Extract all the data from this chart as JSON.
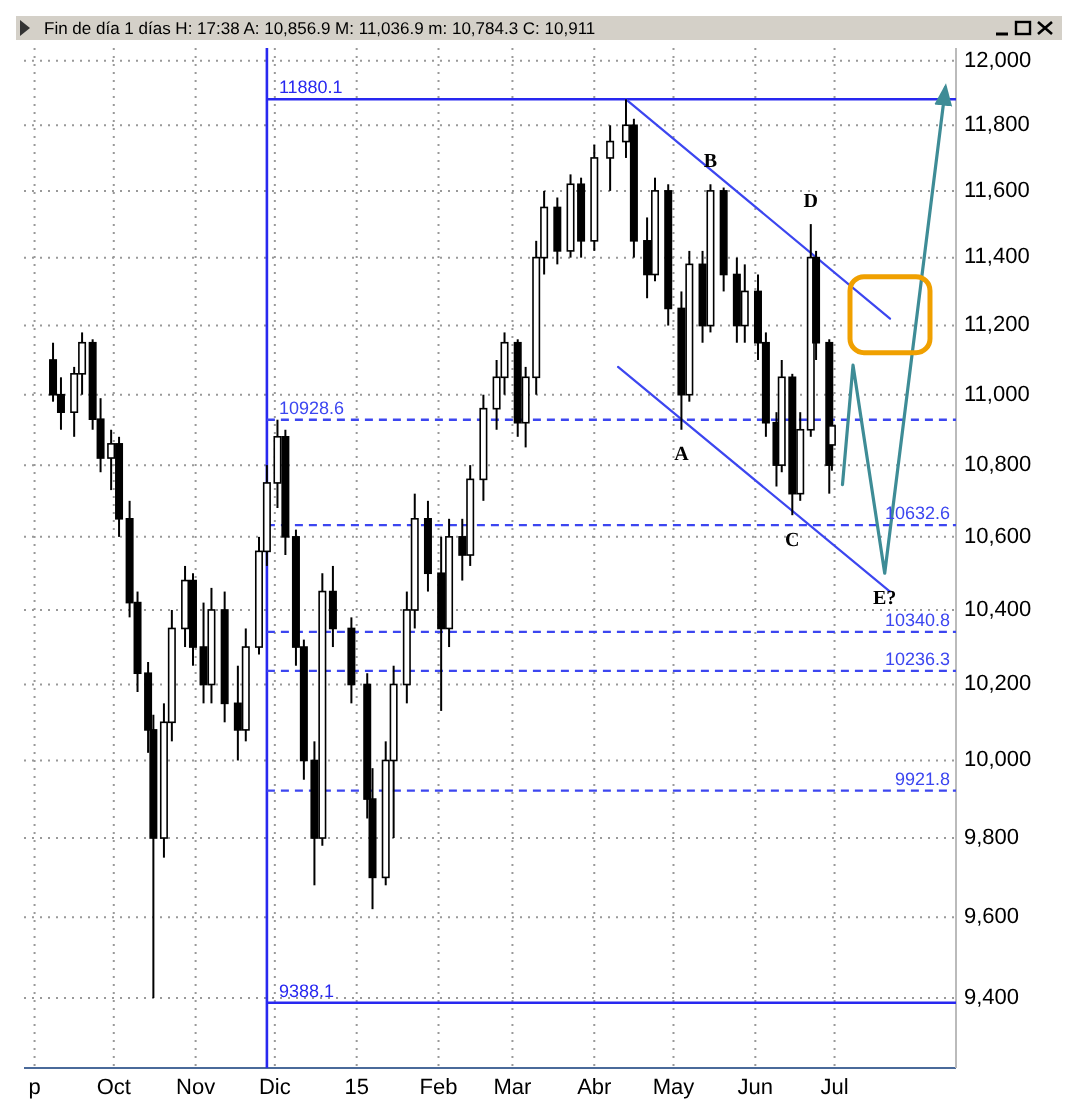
{
  "chart_data": {
    "type": "candlestick",
    "title": "Fin de día 1 días H: 17:38 A: 10,856.9 M: 11,036.9 m: 10,784.3 C: 10,911",
    "log": true,
    "grid": true,
    "xlim": [
      "2014-08-28",
      "2015-08-16"
    ],
    "xticks": [
      {
        "value": "2014-09-01",
        "label": "p"
      },
      {
        "value": "2014-10-01",
        "label": "Oct"
      },
      {
        "value": "2014-11-01",
        "label": "Nov"
      },
      {
        "value": "2014-12-01",
        "label": "Dic"
      },
      {
        "value": "2015-01-01",
        "label": "15"
      },
      {
        "value": "2015-02-01",
        "label": "Feb"
      },
      {
        "value": "2015-03-01",
        "label": "Mar"
      },
      {
        "value": "2015-04-01",
        "label": "Abr"
      },
      {
        "value": "2015-05-01",
        "label": "May"
      },
      {
        "value": "2015-06-01",
        "label": "Jun"
      },
      {
        "value": "2015-07-01",
        "label": "Jul"
      }
    ],
    "ylim": [
      9230,
      12040
    ],
    "yticks": [
      {
        "value": 9400,
        "label": "9,400"
      },
      {
        "value": 9600,
        "label": "9,600"
      },
      {
        "value": 9800,
        "label": "9,800"
      },
      {
        "value": 10000,
        "label": "10,000"
      },
      {
        "value": 10200,
        "label": "10,200"
      },
      {
        "value": 10400,
        "label": "10,400"
      },
      {
        "value": 10600,
        "label": "10,600"
      },
      {
        "value": 10800,
        "label": "10,800"
      },
      {
        "value": 11000,
        "label": "11,000"
      },
      {
        "value": 11200,
        "label": "11,200"
      },
      {
        "value": 11400,
        "label": "11,400"
      },
      {
        "value": 11600,
        "label": "11,600"
      },
      {
        "value": 11800,
        "label": "11,800"
      },
      {
        "value": 12000,
        "label": "12,000"
      }
    ],
    "x": [
      "2014-09-08",
      "2014-09-11",
      "2014-09-16",
      "2014-09-19",
      "2014-09-23",
      "2014-09-26",
      "2014-09-30",
      "2014-10-03",
      "2014-10-07",
      "2014-10-10",
      "2014-10-14",
      "2014-10-16",
      "2014-10-20",
      "2014-10-23",
      "2014-10-28",
      "2014-10-31",
      "2014-11-04",
      "2014-11-07",
      "2014-11-12",
      "2014-11-17",
      "2014-11-20",
      "2014-11-25",
      "2014-11-28",
      "2014-12-02",
      "2014-12-05",
      "2014-12-09",
      "2014-12-12",
      "2014-12-16",
      "2014-12-19",
      "2014-12-23",
      "2014-12-30",
      "2015-01-05",
      "2015-01-07",
      "2015-01-12",
      "2015-01-15",
      "2015-01-20",
      "2015-01-23",
      "2015-01-28",
      "2015-02-02",
      "2015-02-05",
      "2015-02-10",
      "2015-02-13",
      "2015-02-18",
      "2015-02-23",
      "2015-02-26",
      "2015-03-03",
      "2015-03-06",
      "2015-03-10",
      "2015-03-13",
      "2015-03-18",
      "2015-03-23",
      "2015-03-27",
      "2015-04-01",
      "2015-04-07",
      "2015-04-13",
      "2015-04-16",
      "2015-04-21",
      "2015-04-24",
      "2015-04-29",
      "2015-05-04",
      "2015-05-07",
      "2015-05-12",
      "2015-05-15",
      "2015-05-20",
      "2015-05-25",
      "2015-05-28",
      "2015-06-02",
      "2015-06-05",
      "2015-06-09",
      "2015-06-11",
      "2015-06-15",
      "2015-06-18",
      "2015-06-22",
      "2015-06-24",
      "2015-06-29",
      "2015-06-30"
    ],
    "ohlc": [
      [
        11100,
        11150,
        10980,
        11000
      ],
      [
        11000,
        11050,
        10900,
        10950
      ],
      [
        10950,
        11080,
        10880,
        11060
      ],
      [
        11060,
        11180,
        11000,
        11150
      ],
      [
        11150,
        11160,
        10900,
        10930
      ],
      [
        10930,
        10990,
        10780,
        10820
      ],
      [
        10820,
        10900,
        10730,
        10860
      ],
      [
        10860,
        10880,
        10600,
        10650
      ],
      [
        10650,
        10700,
        10380,
        10420
      ],
      [
        10420,
        10450,
        10180,
        10230
      ],
      [
        10230,
        10260,
        10020,
        10080
      ],
      [
        10080,
        10120,
        9400,
        9800
      ],
      [
        9800,
        10150,
        9750,
        10100
      ],
      [
        10100,
        10400,
        10050,
        10350
      ],
      [
        10350,
        10520,
        10300,
        10480
      ],
      [
        10480,
        10500,
        10250,
        10300
      ],
      [
        10300,
        10420,
        10150,
        10200
      ],
      [
        10200,
        10460,
        10150,
        10400
      ],
      [
        10400,
        10450,
        10100,
        10150
      ],
      [
        10150,
        10250,
        10000,
        10080
      ],
      [
        10080,
        10350,
        10050,
        10300
      ],
      [
        10300,
        10600,
        10280,
        10560
      ],
      [
        10560,
        10800,
        10520,
        10750
      ],
      [
        10750,
        10928.6,
        10680,
        10880
      ],
      [
        10880,
        10900,
        10550,
        10600
      ],
      [
        10600,
        10620,
        10250,
        10300
      ],
      [
        10300,
        10320,
        9950,
        10000
      ],
      [
        10000,
        10050,
        9680,
        9800
      ],
      [
        9800,
        10500,
        9780,
        10450
      ],
      [
        10450,
        10520,
        10300,
        10350
      ],
      [
        10350,
        10380,
        10150,
        10200
      ],
      [
        10200,
        10230,
        9850,
        9900
      ],
      [
        9900,
        9980,
        9620,
        9700
      ],
      [
        9700,
        10050,
        9680,
        10000
      ],
      [
        10000,
        10250,
        9800,
        10200
      ],
      [
        10200,
        10450,
        10150,
        10400
      ],
      [
        10400,
        10720,
        10350,
        10650
      ],
      [
        10650,
        10700,
        10450,
        10500
      ],
      [
        10500,
        10600,
        10130,
        10350
      ],
      [
        10350,
        10650,
        10300,
        10600
      ],
      [
        10600,
        10650,
        10480,
        10550
      ],
      [
        10550,
        10800,
        10520,
        10760
      ],
      [
        10760,
        11000,
        10700,
        10960
      ],
      [
        10960,
        11100,
        10900,
        11050
      ],
      [
        11050,
        11180,
        11000,
        11150
      ],
      [
        11150,
        11160,
        10880,
        10920
      ],
      [
        10920,
        11080,
        10850,
        11050
      ],
      [
        11050,
        11450,
        11000,
        11400
      ],
      [
        11400,
        11600,
        11350,
        11550
      ],
      [
        11550,
        11580,
        11380,
        11420
      ],
      [
        11420,
        11650,
        11400,
        11620
      ],
      [
        11620,
        11640,
        11400,
        11450
      ],
      [
        11450,
        11740,
        11420,
        11700
      ],
      [
        11700,
        11800,
        11600,
        11750
      ],
      [
        11750,
        11880.1,
        11700,
        11800
      ],
      [
        11800,
        11820,
        11400,
        11450
      ],
      [
        11450,
        11520,
        11280,
        11350
      ],
      [
        11350,
        11640,
        11330,
        11600
      ],
      [
        11600,
        11620,
        11200,
        11250
      ],
      [
        11250,
        11300,
        10900,
        11000
      ],
      [
        11000,
        11420,
        10980,
        11380
      ],
      [
        11380,
        11420,
        11150,
        11200
      ],
      [
        11200,
        11620,
        11180,
        11600
      ],
      [
        11600,
        11610,
        11300,
        11350
      ],
      [
        11350,
        11400,
        11150,
        11200
      ],
      [
        11200,
        11380,
        11150,
        11300
      ],
      [
        11300,
        11350,
        11100,
        11150
      ],
      [
        11150,
        11180,
        10880,
        10920
      ],
      [
        10920,
        10950,
        10740,
        10800
      ],
      [
        10800,
        11100,
        10780,
        11050
      ],
      [
        11050,
        11060,
        10660,
        10720
      ],
      [
        10720,
        10950,
        10700,
        10900
      ],
      [
        10900,
        11500,
        10880,
        11400
      ],
      [
        11400,
        11420,
        11100,
        11150
      ],
      [
        11150,
        11160,
        10720,
        10800
      ],
      [
        10856.9,
        11036.9,
        10784.3,
        10911
      ]
    ],
    "series": [
      {
        "type": "line",
        "color": "#3c46f0",
        "x": [
          "2015-04-13",
          "2015-07-22"
        ],
        "values": [
          11880,
          11220
        ]
      },
      {
        "type": "line",
        "color": "#3c46f0",
        "x": [
          "2015-04-10",
          "2015-07-22"
        ],
        "values": [
          11080,
          10450
        ]
      },
      {
        "type": "line",
        "color": "#3e8c96",
        "x": [
          "2015-07-04",
          "2015-07-08",
          "2015-07-20",
          "2015-08-12"
        ],
        "values": [
          10745,
          11085,
          10500,
          11916
        ]
      }
    ],
    "ref_lines": [
      {
        "axis": "x",
        "value": "2014-11-28",
        "color": "#2828f0",
        "line_style": "solid"
      },
      {
        "axis": "y",
        "value": 11880.1,
        "label": "11880.1",
        "color": "#2828f0",
        "line_style": "solid"
      },
      {
        "axis": "y",
        "value": 10928.6,
        "label": "10928.6",
        "color": "#3c46f0",
        "line_style": "dashed"
      },
      {
        "axis": "y",
        "value": 10632.6,
        "label": "10632.6",
        "color": "#3c46f0",
        "line_style": "dashed"
      },
      {
        "axis": "y",
        "value": 10340.8,
        "label": "10340.8",
        "color": "#3c46f0",
        "line_style": "dashed"
      },
      {
        "axis": "y",
        "value": 10236.3,
        "label": "10236.3",
        "color": "#3c46f0",
        "line_style": "dashed"
      },
      {
        "axis": "y",
        "value": 9921.8,
        "label": "9921.8",
        "color": "#3c46f0",
        "line_style": "dashed"
      },
      {
        "axis": "y",
        "value": 9388.1,
        "label": "9388.1",
        "color": "#2828f0",
        "line_style": "solid"
      }
    ],
    "annotations": [
      {
        "text": "A",
        "x": "2015-05-04",
        "y": 10900
      },
      {
        "text": "B",
        "x": "2015-05-15",
        "y": 11620
      },
      {
        "text": "C",
        "x": "2015-06-15",
        "y": 10660
      },
      {
        "text": "D",
        "x": "2015-06-22",
        "y": 11500
      },
      {
        "text": "E?",
        "x": "2015-07-20",
        "y": 10500
      }
    ]
  }
}
